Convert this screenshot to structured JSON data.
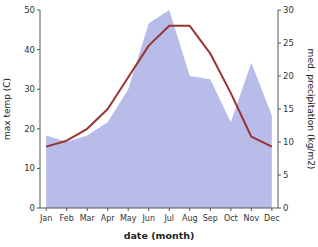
{
  "chart_data": {
    "type": "line",
    "x_label": "date (month)",
    "y_label": "max temp (C)",
    "y2_label": "med. precipitation (kg/m2)",
    "categories": [
      "Jan",
      "Feb",
      "Mar",
      "Apr",
      "May",
      "Jun",
      "Jul",
      "Aug",
      "Sep",
      "Oct",
      "Nov",
      "Dec"
    ],
    "series": [
      {
        "type": "area",
        "axis": "y2",
        "color": "#b8bce8",
        "values": [
          11.0,
          10.0,
          11.0,
          13.0,
          18.0,
          28.0,
          30.0,
          20.0,
          19.5,
          13.0,
          22.0,
          14.0
        ]
      },
      {
        "type": "line",
        "color": "#993333",
        "values": [
          15.5,
          17.0,
          20.0,
          25.0,
          33.0,
          41.0,
          46.0,
          46.0,
          39.0,
          29.0,
          18.0,
          15.5
        ]
      }
    ],
    "ylim": [
      0,
      50
    ],
    "yticks": [
      0,
      10,
      20,
      30,
      40,
      50
    ],
    "y2lim": [
      0,
      30
    ],
    "y2ticks": [
      0,
      5,
      10,
      15,
      20,
      25,
      30
    ],
    "grid": false
  }
}
